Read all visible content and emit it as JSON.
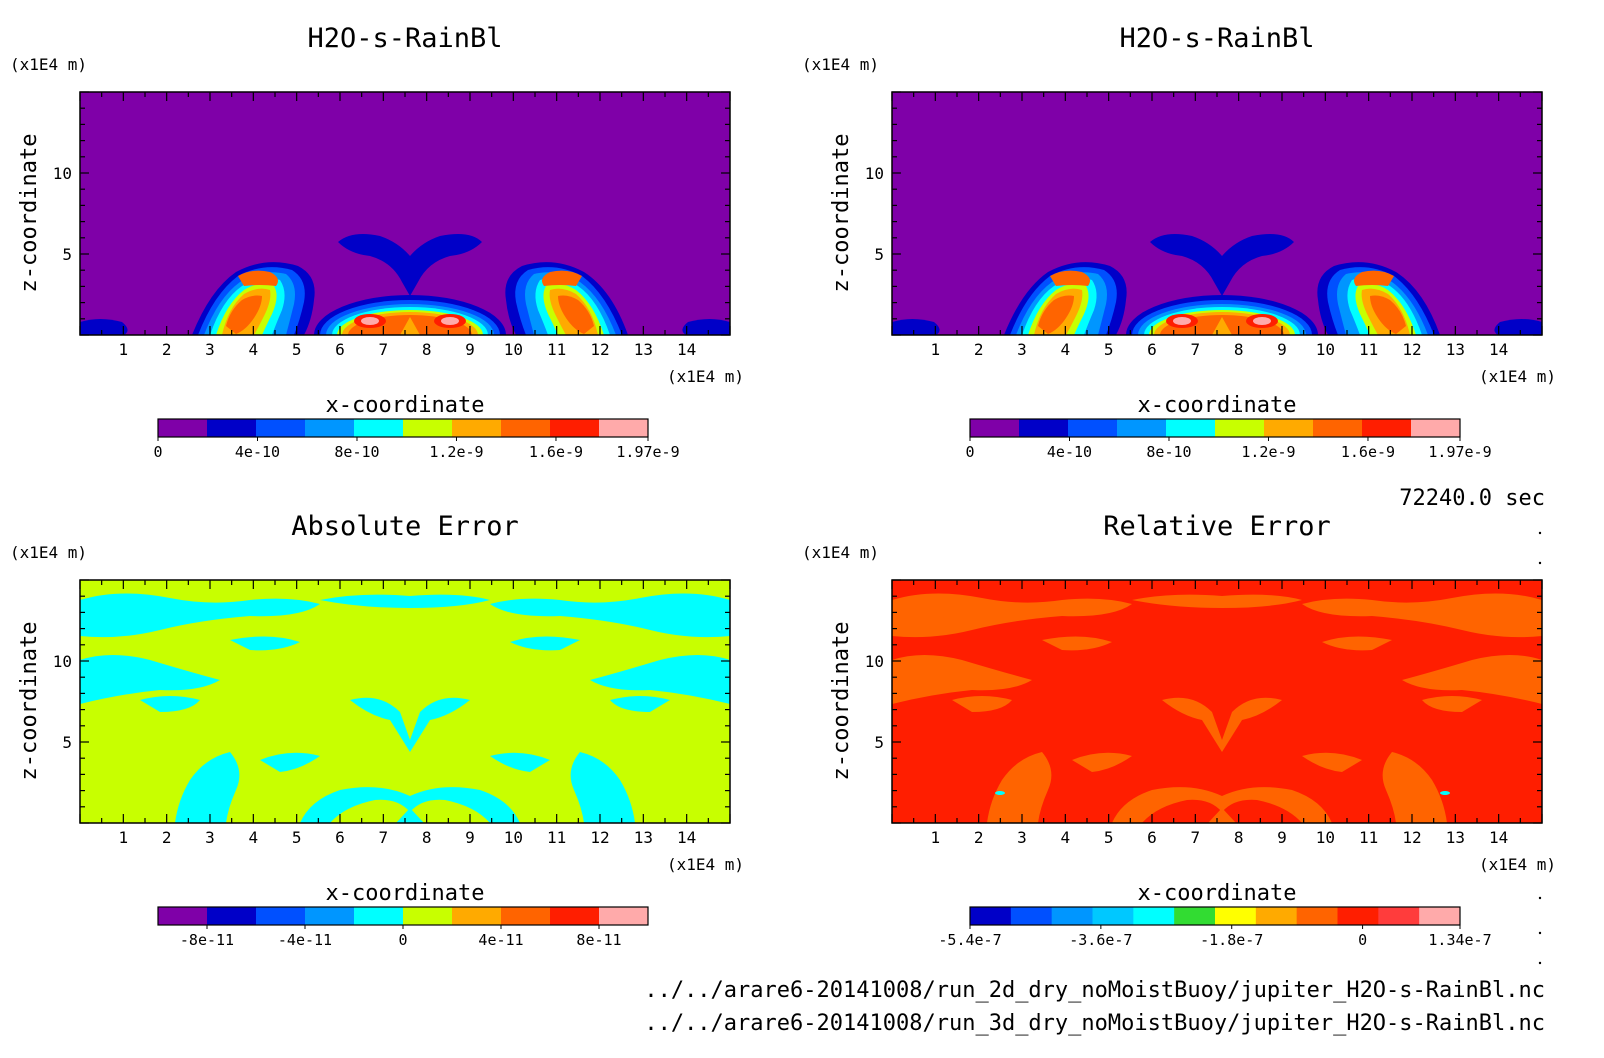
{
  "chart_data": [
    {
      "type": "heatmap",
      "title": "H2O-s-RainBl",
      "xlabel": "x-coordinate",
      "ylabel": "z-coordinate",
      "x_unit": "(x1E4 m)",
      "y_unit": "(x1E4 m)",
      "xlim": [
        0,
        15
      ],
      "ylim": [
        0,
        15
      ],
      "x_ticks": [
        "1",
        "2",
        "3",
        "4",
        "5",
        "6",
        "7",
        "8",
        "9",
        "10",
        "11",
        "12",
        "13",
        "14"
      ],
      "y_ticks": [
        "5",
        "10"
      ],
      "colorbar": {
        "labels": [
          "0",
          "4e-10",
          "8e-10",
          "1.2e-9",
          "1.6e-9",
          "1.97e-9"
        ],
        "range": [
          0,
          1.97e-09
        ],
        "colors": [
          "#7f00a8",
          "#0000c8",
          "#0050ff",
          "#0096ff",
          "#00ffff",
          "#c8ff00",
          "#ffaa00",
          "#ff6400",
          "#ff1e00",
          "#ffaaaa"
        ]
      }
    },
    {
      "type": "heatmap",
      "title": "H2O-s-RainBl",
      "xlabel": "x-coordinate",
      "ylabel": "z-coordinate",
      "x_unit": "(x1E4 m)",
      "y_unit": "(x1E4 m)",
      "xlim": [
        0,
        15
      ],
      "ylim": [
        0,
        15
      ],
      "x_ticks": [
        "1",
        "2",
        "3",
        "4",
        "5",
        "6",
        "7",
        "8",
        "9",
        "10",
        "11",
        "12",
        "13",
        "14"
      ],
      "y_ticks": [
        "5",
        "10"
      ],
      "colorbar": {
        "labels": [
          "0",
          "4e-10",
          "8e-10",
          "1.2e-9",
          "1.6e-9",
          "1.97e-9"
        ],
        "range": [
          0,
          1.97e-09
        ],
        "colors": [
          "#7f00a8",
          "#0000c8",
          "#0050ff",
          "#0096ff",
          "#00ffff",
          "#c8ff00",
          "#ffaa00",
          "#ff6400",
          "#ff1e00",
          "#ffaaaa"
        ]
      }
    },
    {
      "type": "heatmap",
      "title": "Absolute Error",
      "xlabel": "x-coordinate",
      "ylabel": "z-coordinate",
      "x_unit": "(x1E4 m)",
      "y_unit": "(x1E4 m)",
      "xlim": [
        0,
        15
      ],
      "ylim": [
        0,
        15
      ],
      "x_ticks": [
        "1",
        "2",
        "3",
        "4",
        "5",
        "6",
        "7",
        "8",
        "9",
        "10",
        "11",
        "12",
        "13",
        "14"
      ],
      "y_ticks": [
        "5",
        "10"
      ],
      "colorbar": {
        "labels": [
          "-8e-11",
          "-4e-11",
          "0",
          "4e-11",
          "8e-11"
        ],
        "range": [
          -1e-10,
          1e-10
        ],
        "colors": [
          "#7f00a8",
          "#0000c8",
          "#0050ff",
          "#0096ff",
          "#00ffff",
          "#c8ff00",
          "#ffaa00",
          "#ff6400",
          "#ff1e00",
          "#ffaaaa"
        ]
      }
    },
    {
      "type": "heatmap",
      "title": "Relative Error",
      "xlabel": "x-coordinate",
      "ylabel": "z-coordinate",
      "x_unit": "(x1E4 m)",
      "y_unit": "(x1E4 m)",
      "xlim": [
        0,
        15
      ],
      "ylim": [
        0,
        15
      ],
      "x_ticks": [
        "1",
        "2",
        "3",
        "4",
        "5",
        "6",
        "7",
        "8",
        "9",
        "10",
        "11",
        "12",
        "13",
        "14"
      ],
      "y_ticks": [
        "5",
        "10"
      ],
      "colorbar": {
        "labels": [
          "-5.4e-7",
          "-3.6e-7",
          "-1.8e-7",
          "0",
          "1.34e-7"
        ],
        "range": [
          -5.4e-07,
          1.34e-07
        ],
        "colors": [
          "#0000c8",
          "#0050ff",
          "#0096ff",
          "#00c8ff",
          "#00ffff",
          "#32dc32",
          "#ffff00",
          "#ffaa00",
          "#ff6400",
          "#ff1e00",
          "#ff3c3c",
          "#ffaaaa"
        ]
      }
    }
  ],
  "time_label": "72240.0 sec",
  "file_paths": [
    "../../arare6-20141008/run_2d_dry_noMoistBuoy/jupiter_H2O-s-RainBl.nc",
    "../../arare6-20141008/run_3d_dry_noMoistBuoy/jupiter_H2O-s-RainBl.nc"
  ]
}
